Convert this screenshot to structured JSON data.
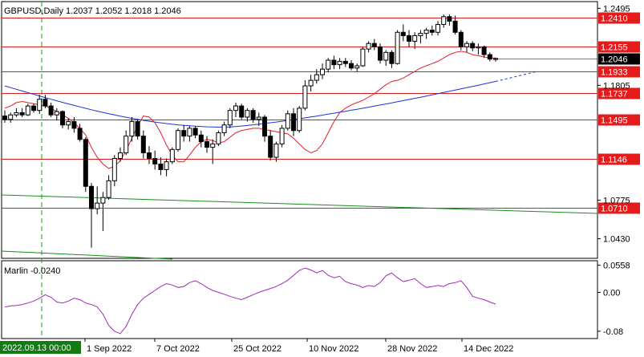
{
  "chart_data": {
    "type": "candlestick",
    "header": "GBPUSD,Daily  1.2037 1.2052 1.2018 1.2046",
    "symbol": "GBPUSD",
    "timeframe": "Daily",
    "ohlc": {
      "open": 1.2037,
      "high": 1.2052,
      "low": 1.2018,
      "close": 1.2046
    },
    "price_ticks": [
      "1.2495",
      "1.1805",
      "1.0775",
      "1.0430"
    ],
    "price_ticks_values": [
      1.2495,
      1.1805,
      1.0775,
      1.043
    ],
    "current_price": "1.2046",
    "horizontal_levels": [
      {
        "label": "1.2410",
        "value": 1.241
      },
      {
        "label": "1.2155",
        "value": 1.2155
      },
      {
        "label": "1.1933",
        "value": 1.1933
      },
      {
        "label": "1.1737",
        "value": 1.1737
      },
      {
        "label": "1.1495",
        "value": 1.1495
      },
      {
        "label": "1.1146",
        "value": 1.1146
      },
      {
        "label": "1.0710",
        "value": 1.071
      }
    ],
    "date_ticks": [
      "1 Sep 2022",
      "7 Oct 2022",
      "25 Oct 2022",
      "10 Nov 2022",
      "28 Nov 2022",
      "14 Dec 2022"
    ],
    "cursor_date": "2022.09.13 00:00",
    "candles": [
      [
        1.153,
        1.158,
        1.147,
        1.15
      ],
      [
        1.15,
        1.156,
        1.147,
        1.154
      ],
      [
        1.154,
        1.16,
        1.152,
        1.156
      ],
      [
        1.156,
        1.16,
        1.152,
        1.154
      ],
      [
        1.154,
        1.164,
        1.153,
        1.162
      ],
      [
        1.162,
        1.164,
        1.156,
        1.158
      ],
      [
        1.158,
        1.172,
        1.155,
        1.168
      ],
      [
        1.168,
        1.172,
        1.16,
        1.162
      ],
      [
        1.162,
        1.165,
        1.152,
        1.154
      ],
      [
        1.154,
        1.16,
        1.149,
        1.157
      ],
      [
        1.157,
        1.158,
        1.142,
        1.145
      ],
      [
        1.145,
        1.151,
        1.141,
        1.148
      ],
      [
        1.148,
        1.152,
        1.138,
        1.142
      ],
      [
        1.142,
        1.146,
        1.13,
        1.132
      ],
      [
        1.132,
        1.134,
        1.085,
        1.09
      ],
      [
        1.09,
        1.093,
        1.035,
        1.07
      ],
      [
        1.07,
        1.09,
        1.065,
        1.075
      ],
      [
        1.075,
        1.085,
        1.05,
        1.08
      ],
      [
        1.08,
        1.1,
        1.078,
        1.095
      ],
      [
        1.095,
        1.118,
        1.09,
        1.115
      ],
      [
        1.115,
        1.125,
        1.112,
        1.12
      ],
      [
        1.12,
        1.14,
        1.118,
        1.135
      ],
      [
        1.135,
        1.152,
        1.13,
        1.148
      ],
      [
        1.148,
        1.15,
        1.132,
        1.135
      ],
      [
        1.135,
        1.14,
        1.115,
        1.12
      ],
      [
        1.12,
        1.126,
        1.11,
        1.115
      ],
      [
        1.115,
        1.122,
        1.105,
        1.11
      ],
      [
        1.11,
        1.116,
        1.1,
        1.105
      ],
      [
        1.105,
        1.115,
        1.099,
        1.112
      ],
      [
        1.112,
        1.125,
        1.11,
        1.123
      ],
      [
        1.123,
        1.142,
        1.121,
        1.14
      ],
      [
        1.14,
        1.145,
        1.13,
        1.135
      ],
      [
        1.135,
        1.144,
        1.13,
        1.142
      ],
      [
        1.142,
        1.144,
        1.133,
        1.136
      ],
      [
        1.136,
        1.14,
        1.125,
        1.13
      ],
      [
        1.13,
        1.135,
        1.12,
        1.125
      ],
      [
        1.125,
        1.132,
        1.11,
        1.128
      ],
      [
        1.128,
        1.14,
        1.126,
        1.138
      ],
      [
        1.138,
        1.148,
        1.135,
        1.145
      ],
      [
        1.145,
        1.16,
        1.142,
        1.158
      ],
      [
        1.158,
        1.165,
        1.152,
        1.162
      ],
      [
        1.162,
        1.164,
        1.15,
        1.152
      ],
      [
        1.152,
        1.16,
        1.148,
        1.158
      ],
      [
        1.158,
        1.16,
        1.147,
        1.15
      ],
      [
        1.15,
        1.156,
        1.144,
        1.152
      ],
      [
        1.152,
        1.154,
        1.13,
        1.135
      ],
      [
        1.135,
        1.14,
        1.113,
        1.116
      ],
      [
        1.116,
        1.13,
        1.112,
        1.128
      ],
      [
        1.128,
        1.145,
        1.125,
        1.142
      ],
      [
        1.142,
        1.158,
        1.14,
        1.155
      ],
      [
        1.155,
        1.16,
        1.135,
        1.14
      ],
      [
        1.14,
        1.162,
        1.138,
        1.16
      ],
      [
        1.16,
        1.185,
        1.158,
        1.18
      ],
      [
        1.18,
        1.19,
        1.175,
        1.185
      ],
      [
        1.185,
        1.195,
        1.182,
        1.19
      ],
      [
        1.19,
        1.2,
        1.186,
        1.195
      ],
      [
        1.195,
        1.205,
        1.192,
        1.203
      ],
      [
        1.203,
        1.207,
        1.195,
        1.199
      ],
      [
        1.199,
        1.205,
        1.195,
        1.202
      ],
      [
        1.202,
        1.205,
        1.197,
        1.2
      ],
      [
        1.2,
        1.203,
        1.194,
        1.196
      ],
      [
        1.196,
        1.2,
        1.193,
        1.198
      ],
      [
        1.198,
        1.215,
        1.197,
        1.213
      ],
      [
        1.213,
        1.22,
        1.21,
        1.218
      ],
      [
        1.218,
        1.222,
        1.212,
        1.215
      ],
      [
        1.215,
        1.218,
        1.2,
        1.203
      ],
      [
        1.203,
        1.212,
        1.198,
        1.21
      ],
      [
        1.21,
        1.212,
        1.196,
        1.2
      ],
      [
        1.2,
        1.23,
        1.199,
        1.228
      ],
      [
        1.228,
        1.235,
        1.22,
        1.225
      ],
      [
        1.225,
        1.23,
        1.215,
        1.22
      ],
      [
        1.22,
        1.228,
        1.213,
        1.225
      ],
      [
        1.225,
        1.23,
        1.218,
        1.227
      ],
      [
        1.227,
        1.232,
        1.222,
        1.23
      ],
      [
        1.23,
        1.234,
        1.225,
        1.228
      ],
      [
        1.228,
        1.238,
        1.225,
        1.235
      ],
      [
        1.235,
        1.244,
        1.232,
        1.242
      ],
      [
        1.242,
        1.244,
        1.234,
        1.238
      ],
      [
        1.238,
        1.243,
        1.226,
        1.228
      ],
      [
        1.228,
        1.23,
        1.212,
        1.215
      ],
      [
        1.215,
        1.22,
        1.21,
        1.218
      ],
      [
        1.218,
        1.22,
        1.211,
        1.214
      ],
      [
        1.214,
        1.218,
        1.208,
        1.215
      ],
      [
        1.215,
        1.216,
        1.205,
        1.208
      ],
      [
        1.208,
        1.21,
        1.202,
        1.204
      ],
      [
        1.2037,
        1.2052,
        1.2018,
        1.2046
      ]
    ],
    "ma_red": [
      1.16,
      1.162,
      1.165,
      1.166,
      1.165,
      1.164,
      1.163,
      1.162,
      1.16,
      1.157,
      1.154,
      1.151,
      1.147,
      1.142,
      1.136,
      1.125,
      1.116,
      1.11,
      1.106,
      1.108,
      1.113,
      1.122,
      1.133,
      1.144,
      1.153,
      1.152,
      1.147,
      1.138,
      1.127,
      1.118,
      1.112,
      1.112,
      1.118,
      1.125,
      1.13,
      1.132,
      1.131,
      1.129,
      1.13,
      1.134,
      1.138,
      1.14,
      1.141,
      1.142,
      1.142,
      1.141,
      1.14,
      1.139,
      1.138,
      1.137,
      1.133,
      1.128,
      1.123,
      1.12,
      1.122,
      1.128,
      1.138,
      1.148,
      1.156,
      1.16,
      1.163,
      1.165,
      1.167,
      1.17,
      1.173,
      1.177,
      1.181,
      1.184,
      1.185,
      1.187,
      1.19,
      1.193,
      1.196,
      1.198,
      1.2,
      1.202,
      1.205,
      1.208,
      1.21,
      1.211,
      1.21,
      1.208,
      1.207,
      1.206,
      1.205,
      1.205
    ],
    "ma_blue_start": 1.18,
    "ma_blue_end": 1.184,
    "marlin_label": "Marlin",
    "marlin_current": "-0.0240",
    "marlin_ticks": [
      "0.0558",
      "0.00",
      "-0.08"
    ],
    "marlin_ticks_values": [
      0.0558,
      0.0,
      -0.08
    ],
    "marlin_values": [
      -0.03,
      -0.028,
      -0.027,
      -0.025,
      -0.022,
      -0.018,
      -0.012,
      -0.005,
      -0.01,
      -0.02,
      -0.022,
      -0.018,
      -0.012,
      -0.015,
      -0.022,
      -0.025,
      -0.03,
      -0.045,
      -0.068,
      -0.08,
      -0.085,
      -0.07,
      -0.045,
      -0.025,
      -0.012,
      -0.004,
      0.004,
      0.012,
      0.018,
      0.015,
      0.01,
      0.012,
      0.02,
      0.024,
      0.018,
      0.01,
      0.004,
      0.0,
      -0.004,
      -0.008,
      -0.012,
      -0.015,
      -0.01,
      -0.005,
      0.0,
      0.004,
      0.008,
      0.012,
      0.018,
      0.025,
      0.035,
      0.045,
      0.05,
      0.046,
      0.04,
      0.045,
      0.035,
      0.03,
      0.033,
      0.022,
      0.018,
      0.015,
      0.01,
      0.014,
      0.012,
      0.02,
      0.034,
      0.04,
      0.03,
      0.022,
      0.025,
      0.028,
      0.018,
      0.01,
      0.012,
      0.014,
      0.012,
      0.018,
      0.02,
      0.024,
      0.01,
      -0.008,
      -0.012,
      -0.015,
      -0.02,
      -0.024
    ]
  }
}
